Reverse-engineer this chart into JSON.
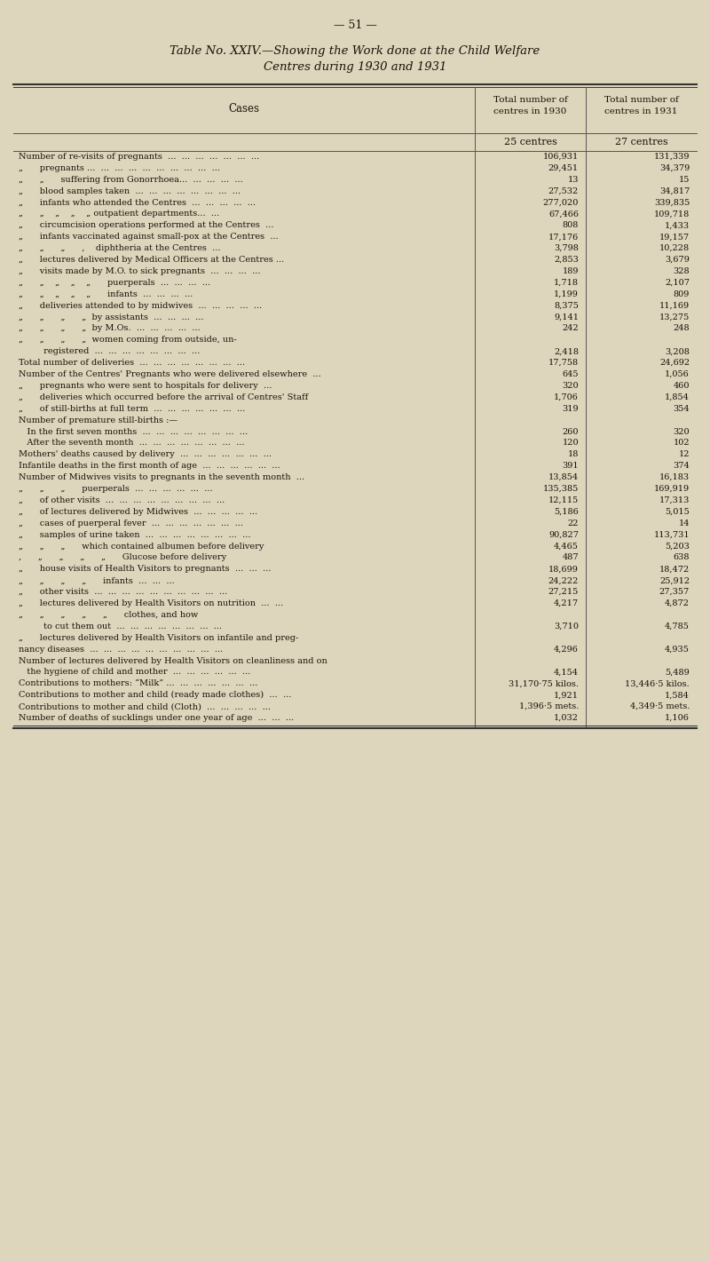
{
  "page_number": "— 51 —",
  "title_line1": "Table No. XXIV.—Showing the Work done at the Child Welfare",
  "title_line2": "Centres during 1930 and 1931",
  "col_header_cases": "Cases",
  "col_header_1930": "Total number of\ncentres in 1930",
  "col_header_1931": "Total number of\ncentres in 1931",
  "subheader_1930": "25 centres",
  "subheader_1931": "27 centres",
  "background_color": "#ddd5bc",
  "text_color": "#1a1208",
  "rows": [
    [
      "Number of re-visits of pregnants  ...  ...  ...  ...  ...  ...  ...",
      "106,931",
      "131,339",
      false
    ],
    [
      "„      pregnants ...  ...  ...  ...  ...  ...  ...  ...  ...  ...",
      "29,451",
      "34,379",
      false
    ],
    [
      "„      „      suffering from Gonorrhoea...  ...  ...  ...  ...",
      "13",
      "15",
      false
    ],
    [
      "„      blood samples taken  ...  ...  ...  ...  ...  ...  ...  ...",
      "27,532",
      "34,817",
      false
    ],
    [
      "„      infants who attended the Centres  ...  ...  ...  ...  ...",
      "277,020",
      "339,835",
      false
    ],
    [
      "„      „    „    „    „ outpatient departments...  ...",
      "67,466",
      "109,718",
      false
    ],
    [
      "„      circumcision operations performed at the Centres  ...",
      "808",
      "1,433",
      false
    ],
    [
      "„      infants vaccinated against small-pox at the Centres  ...",
      "17,176",
      "19,157",
      false
    ],
    [
      "„      „      „      ,    diphtheria at the Centres  ...",
      "3,798",
      "10,228",
      false
    ],
    [
      "„      lectures delivered by Medical Officers at the Centres ...",
      "2,853",
      "3,679",
      false
    ],
    [
      "„      visits made by M.O. to sick pregnants  ...  ...  ...  ...",
      "189",
      "328",
      false
    ],
    [
      "„      „    „    „    „      puerperals  ...  ...  ...  ...",
      "1,718",
      "2,107",
      false
    ],
    [
      "„      „    „    „    „      infants  ...  ...  ...  ...",
      "1,199",
      "809",
      false
    ],
    [
      "„      deliveries attended to by midwives  ...  ...  ...  ...  ...",
      "8,375",
      "11,169",
      false
    ],
    [
      "„      „      „      „  by assistants  ...  ...  ...  ...",
      "9,141",
      "13,275",
      false
    ],
    [
      "„      „      „      „  by M.Os.  ...  ...  ...  ...  ...",
      "242",
      "248",
      false
    ],
    [
      "„      „      „      „  women coming from outside, un-",
      "",
      "",
      false
    ],
    [
      "         registered  ...  ...  ...  ...  ...  ...  ...  ...",
      "2,418",
      "3,208",
      false
    ],
    [
      "Total number of deliveries  ...  ...  ...  ...  ...  ...  ...  ...",
      "17,758",
      "24,692",
      false
    ],
    [
      "Number of the Centres' Pregnants who were delivered elsewhere  ...",
      "645",
      "1,056",
      false
    ],
    [
      "„      pregnants who were sent to hospitals for delivery  ...",
      "320",
      "460",
      false
    ],
    [
      "„      deliveries which occurred before the arrival of Centres' Staff",
      "1,706",
      "1,854",
      false
    ],
    [
      "„      of still-births at full term  ...  ...  ...  ...  ...  ...  ...",
      "319",
      "354",
      false
    ],
    [
      "Number of premature still-births :—",
      "",
      "",
      false
    ],
    [
      "   In the first seven months  ...  ...  ...  ...  ...  ...  ...  ...",
      "260",
      "320",
      false
    ],
    [
      "   After the seventh month  ...  ...  ...  ...  ...  ...  ...  ...",
      "120",
      "102",
      false
    ],
    [
      "Mothers' deaths caused by delivery  ...  ...  ...  ...  ...  ...  ...",
      "18",
      "12",
      false
    ],
    [
      "Infantile deaths in the first month of age  ...  ...  ...  ...  ...  ...",
      "391",
      "374",
      false
    ],
    [
      "Number of Midwives visits to pregnants in the seventh month  ...",
      "13,854",
      "16,183",
      false
    ],
    [
      "„      „      „      puerperals  ...  ...  ...  ...  ...  ...",
      "135,385",
      "169,919",
      false
    ],
    [
      "„      of other visits  ...  ...  ...  ...  ...  ...  ...  ...  ...",
      "12,115",
      "17,313",
      false
    ],
    [
      "„      of lectures delivered by Midwives  ...  ...  ...  ...  ...",
      "5,186",
      "5,015",
      false
    ],
    [
      "„      cases of puerperal fever  ...  ...  ...  ...  ...  ...  ...",
      "22",
      "14",
      false
    ],
    [
      "„      samples of urine taken  ...  ...  ...  ...  ...  ...  ...  ...",
      "90,827",
      "113,731",
      false
    ],
    [
      "„      „      „      which contained albumen before delivery",
      "4,465",
      "5,203",
      false
    ],
    [
      ",      „      „      „      „      Glucose before delivery",
      "487",
      "638",
      false
    ],
    [
      "„      house visits of Health Visitors to pregnants  ...  ...  ...",
      "18,699",
      "18,472",
      false
    ],
    [
      "„      „      „      „      infants  ...  ...  ...",
      "24,222",
      "25,912",
      false
    ],
    [
      "„      other visits  ...  ...  ...  ...  ...  ...  ...  ...  ...  ...",
      "27,215",
      "27,357",
      false
    ],
    [
      "„      lectures delivered by Health Visitors on nutrition  ...  ...",
      "4,217",
      "4,872",
      false
    ],
    [
      "„      „      „      „      „      clothes, and how",
      "",
      "",
      false
    ],
    [
      "         to cut them out  ...  ...  ...  ...  ...  ...  ...  ...",
      "3,710",
      "4,785",
      false
    ],
    [
      "„      lectures delivered by Health Visitors on infantile and preg-",
      "",
      "",
      false
    ],
    [
      "nancy diseases  ...  ...  ...  ...  ...  ...  ...  ...  ...  ...",
      "4,296",
      "4,935",
      false
    ],
    [
      "Number of lectures delivered by Health Visitors on cleanliness and on",
      "",
      "",
      false
    ],
    [
      "   the hygiene of child and mother  ...  ...  ...  ...  ...  ...",
      "4,154",
      "5,489",
      false
    ],
    [
      "Contributions to mothers: “Milk” ...  ...  ...  ...  ...  ...  ...",
      "31,170·75 kilos.",
      "13,446·5 kilos.",
      false
    ],
    [
      "Contributions to mother and child (ready made clothes)  ...  ...",
      "1,921",
      "1,584",
      false
    ],
    [
      "Contributions to mother and child (Cloth)  ...  ...  ...  ...  ...",
      "1,396·5 mets.",
      "4,349·5 mets.",
      false
    ],
    [
      "Number of deaths of sucklings under one year of age  ...  ...  ...",
      "1,032",
      "1,106",
      false
    ]
  ]
}
